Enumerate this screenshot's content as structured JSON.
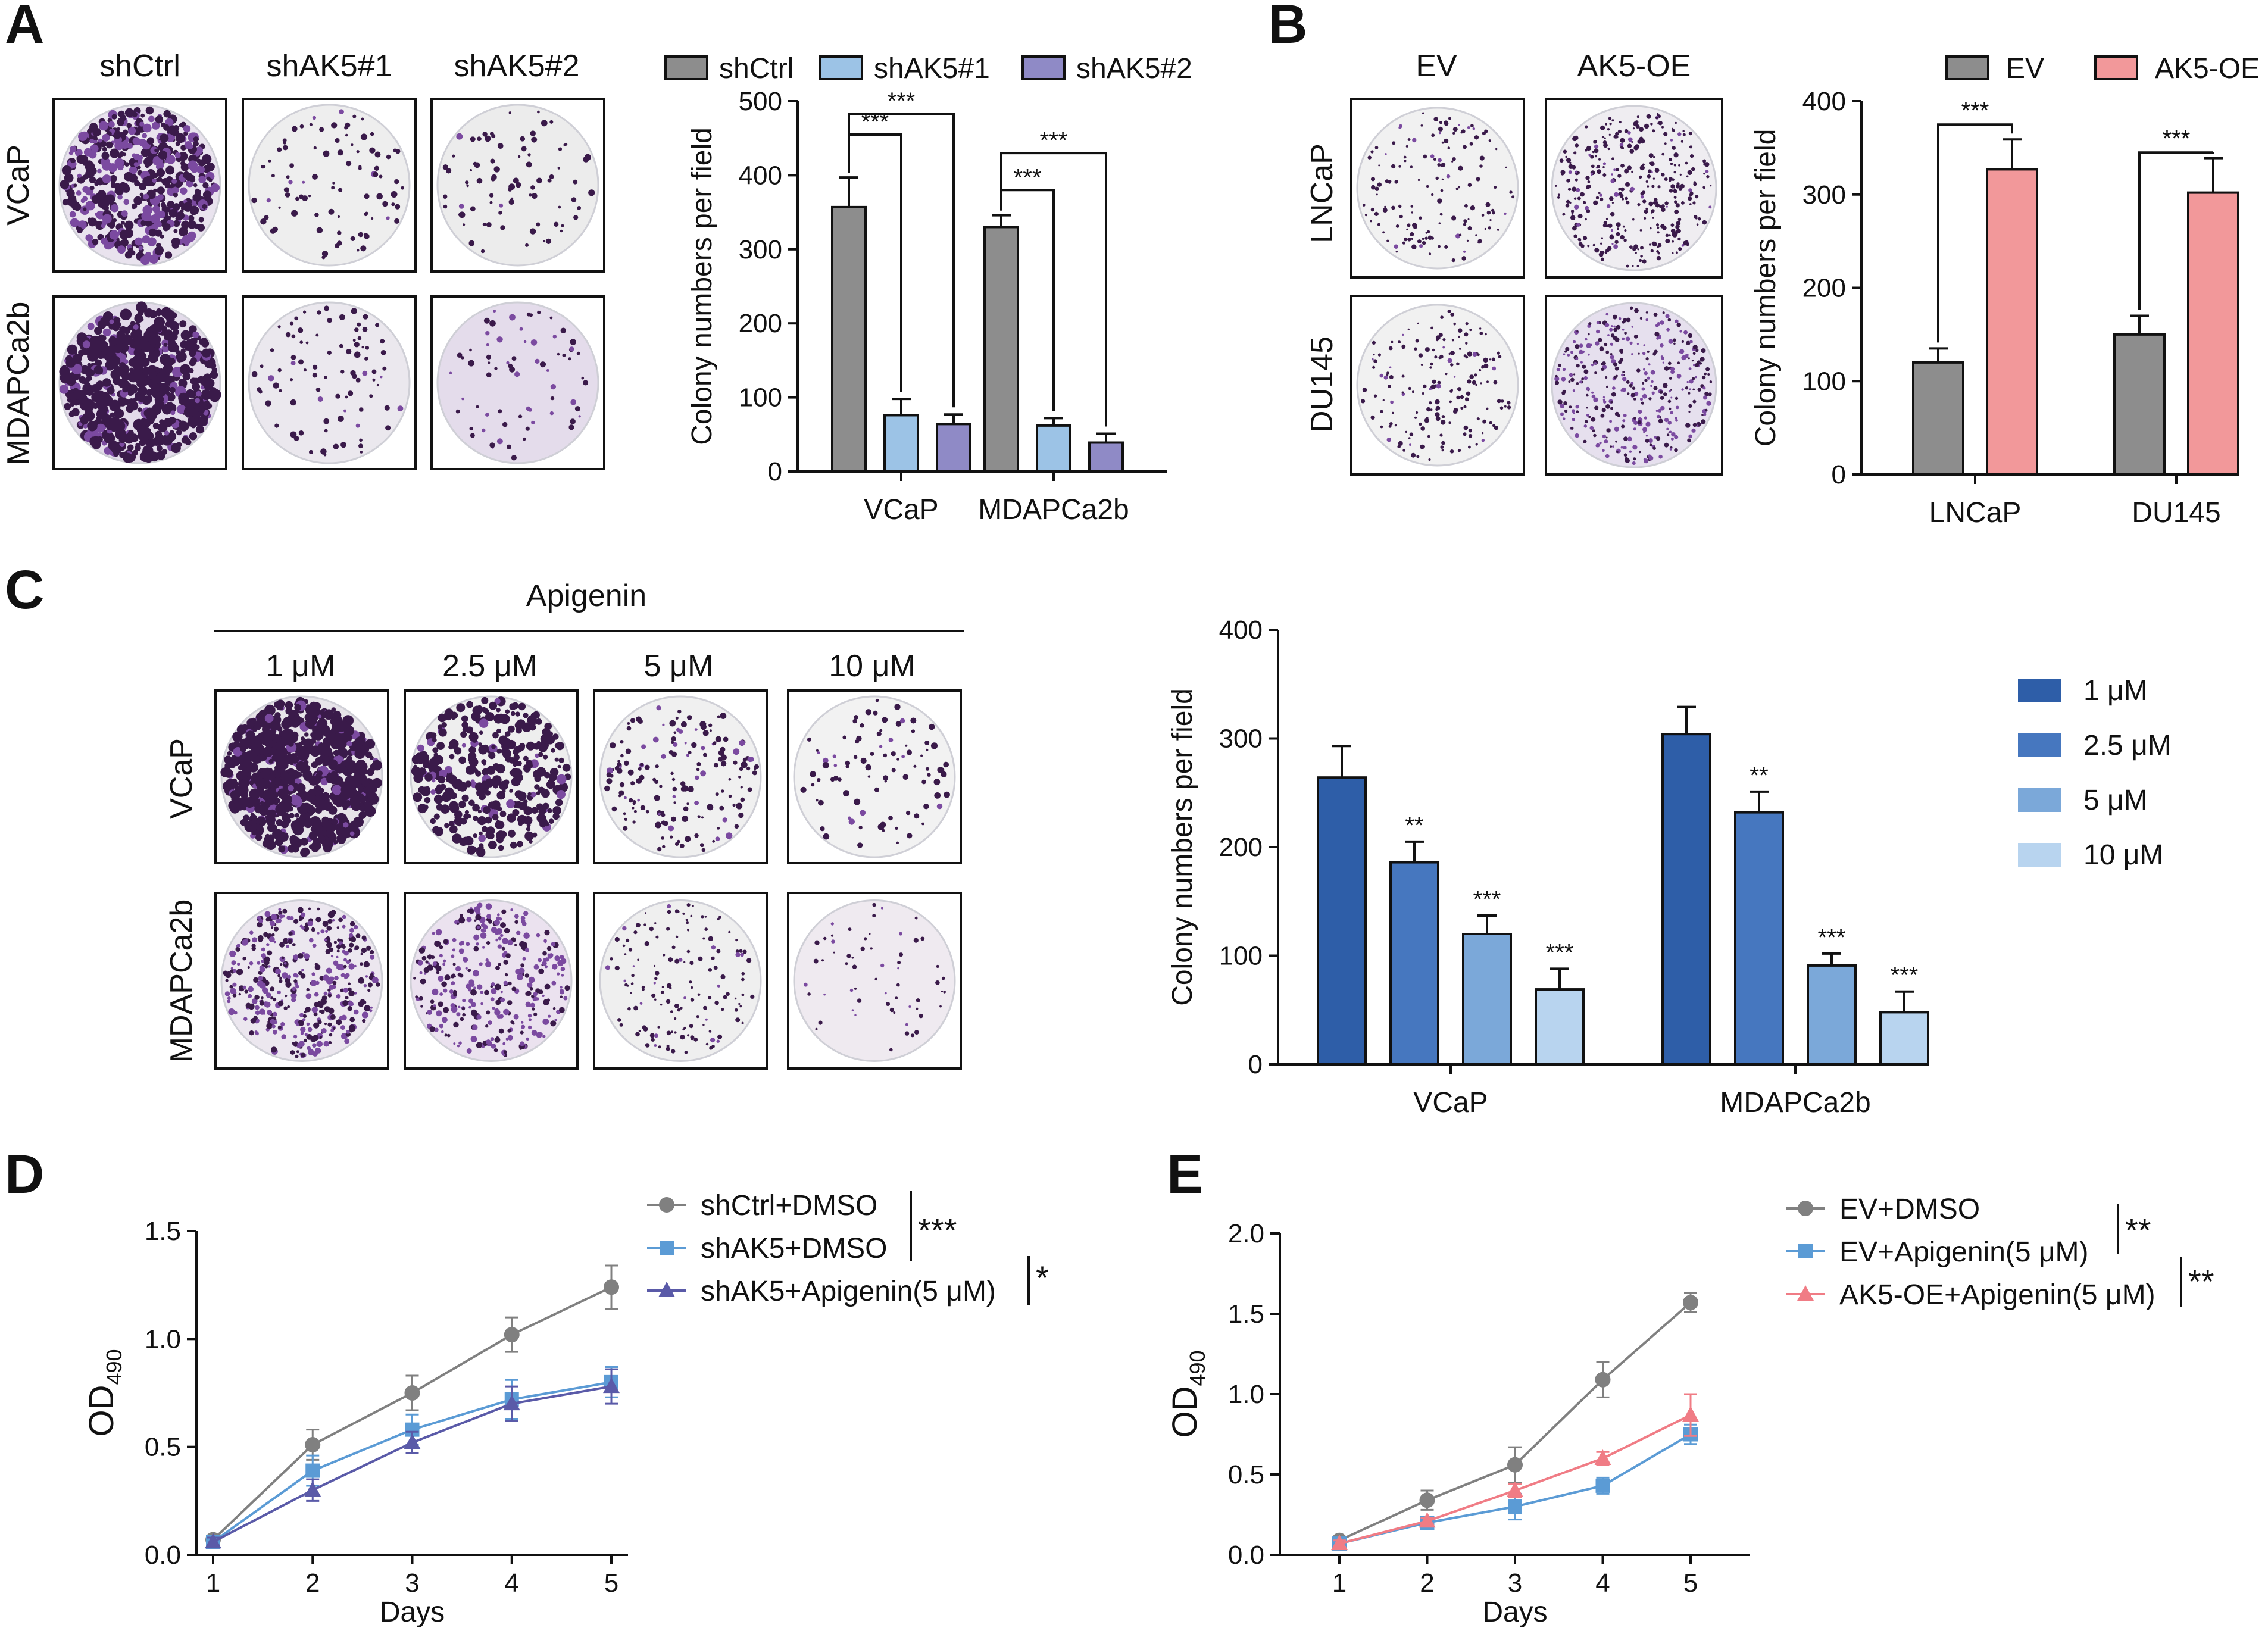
{
  "colors": {
    "gray": "#8d8d8d",
    "light_blue": "#9cc3e6",
    "purple": "#8f8ac6",
    "pink": "#f2989a",
    "blue1": "#2e5ea8",
    "blue2": "#4677bf",
    "blue3": "#7ba8d9",
    "blue4": "#b8d4ef",
    "line_gray": "#808080",
    "line_blue": "#5b9bd5",
    "line_purple": "#5a5aa8",
    "line_pink": "#f07c85",
    "stain": "#3a1a4a"
  },
  "panels": {
    "A": {
      "label": "A",
      "columns": [
        "shCtrl",
        "shAK5#1",
        "shAK5#2"
      ],
      "rows": [
        "VCaP",
        "MDAPCa2b"
      ]
    },
    "B": {
      "label": "B",
      "columns": [
        "EV",
        "AK5-OE"
      ],
      "rows": [
        "LNCaP",
        "DU145"
      ]
    },
    "C": {
      "label": "C",
      "treatment": "Apigenin",
      "columns": [
        "1 μM",
        "2.5 μM",
        "5 μM",
        "10 μM"
      ],
      "rows": [
        "VCaP",
        "MDAPCa2b"
      ]
    },
    "D": {
      "label": "D"
    },
    "E": {
      "label": "E"
    }
  },
  "chart_data": [
    {
      "id": "A",
      "type": "bar",
      "categories": [
        "VCaP",
        "MDAPCa2b"
      ],
      "series": [
        {
          "name": "shCtrl",
          "color": "#8d8d8d",
          "values": [
            357,
            330
          ],
          "errors": [
            40,
            16
          ]
        },
        {
          "name": "shAK5#1",
          "color": "#9cc3e6",
          "values": [
            76,
            62
          ],
          "errors": [
            22,
            10
          ]
        },
        {
          "name": "shAK5#2",
          "color": "#8f8ac6",
          "values": [
            64,
            39
          ],
          "errors": [
            13,
            12
          ]
        }
      ],
      "ylabel": "Colony numbers per field",
      "ylim": [
        0,
        500
      ],
      "yticks": [
        "0",
        "100",
        "200",
        "300",
        "400",
        "500"
      ],
      "significance": [
        {
          "group": "VCaP",
          "from": "shCtrl",
          "to": "shAK5#1",
          "label": "***"
        },
        {
          "group": "VCaP",
          "from": "shCtrl",
          "to": "shAK5#2",
          "label": "***"
        },
        {
          "group": "MDAPCa2b",
          "from": "shCtrl",
          "to": "shAK5#1",
          "label": "***"
        },
        {
          "group": "MDAPCa2b",
          "from": "shCtrl",
          "to": "shAK5#2",
          "label": "***"
        }
      ]
    },
    {
      "id": "B",
      "type": "bar",
      "categories": [
        "LNCaP",
        "DU145"
      ],
      "series": [
        {
          "name": "EV",
          "color": "#8d8d8d",
          "values": [
            120,
            150
          ],
          "errors": [
            15,
            20
          ]
        },
        {
          "name": "AK5-OE",
          "color": "#f2989a",
          "values": [
            327,
            302
          ],
          "errors": [
            32,
            37
          ]
        }
      ],
      "ylabel": "Colony numbers per field",
      "ylim": [
        0,
        400
      ],
      "yticks": [
        "0",
        "100",
        "200",
        "300",
        "400"
      ],
      "significance": [
        {
          "group": "LNCaP",
          "label": "***"
        },
        {
          "group": "DU145",
          "label": "***"
        }
      ]
    },
    {
      "id": "C",
      "type": "bar",
      "categories": [
        "VCaP",
        "MDAPCa2b"
      ],
      "series": [
        {
          "name": "1 μM",
          "color": "#2e5ea8",
          "values": [
            264,
            304
          ],
          "errors": [
            29,
            25
          ],
          "stars": [
            "",
            ""
          ]
        },
        {
          "name": "2.5 μM",
          "color": "#4677bf",
          "values": [
            186,
            232
          ],
          "errors": [
            19,
            19
          ],
          "stars": [
            "**",
            "**"
          ]
        },
        {
          "name": "5 μM",
          "color": "#7ba8d9",
          "values": [
            120,
            91
          ],
          "errors": [
            17,
            11
          ],
          "stars": [
            "***",
            "***"
          ]
        },
        {
          "name": "10 μM",
          "color": "#b8d4ef",
          "values": [
            69,
            48
          ],
          "errors": [
            19,
            19
          ],
          "stars": [
            "***",
            "***"
          ]
        }
      ],
      "ylabel": "Colony numbers per field",
      "ylim": [
        0,
        400
      ],
      "yticks": [
        "0",
        "100",
        "200",
        "300",
        "400"
      ]
    },
    {
      "id": "D",
      "type": "line",
      "x": [
        1,
        2,
        3,
        4,
        5
      ],
      "xticks": [
        "1",
        "2",
        "3",
        "4",
        "5"
      ],
      "series": [
        {
          "name": "shCtrl+DMSO",
          "color": "#808080",
          "marker": "circle",
          "values": [
            0.07,
            0.51,
            0.75,
            1.02,
            1.24
          ],
          "errors": [
            0.02,
            0.07,
            0.08,
            0.08,
            0.1
          ]
        },
        {
          "name": "shAK5+DMSO",
          "color": "#5b9bd5",
          "marker": "square",
          "values": [
            0.06,
            0.39,
            0.58,
            0.72,
            0.8
          ],
          "errors": [
            0.02,
            0.07,
            0.07,
            0.09,
            0.07
          ]
        },
        {
          "name": "shAK5+Apigenin(5 μM)",
          "color": "#5a5aa8",
          "marker": "triangle",
          "values": [
            0.06,
            0.3,
            0.52,
            0.7,
            0.78
          ],
          "errors": [
            0.02,
            0.05,
            0.05,
            0.08,
            0.08
          ]
        }
      ],
      "xlabel": "Days",
      "ylabel": "OD",
      "ylabel_sub": "490",
      "ylim": [
        0,
        1.5
      ],
      "yticks": [
        "0.0",
        "0.5",
        "1.0",
        "1.5"
      ],
      "significance": [
        {
          "between": [
            "shCtrl+DMSO",
            "shAK5+DMSO"
          ],
          "label": "***"
        },
        {
          "between": [
            "shAK5+DMSO",
            "shAK5+Apigenin(5 μM)"
          ],
          "label": "*"
        }
      ]
    },
    {
      "id": "E",
      "type": "line",
      "x": [
        1,
        2,
        3,
        4,
        5
      ],
      "xticks": [
        "1",
        "2",
        "3",
        "4",
        "5"
      ],
      "series": [
        {
          "name": "EV+DMSO",
          "color": "#808080",
          "marker": "circle",
          "values": [
            0.09,
            0.34,
            0.56,
            1.09,
            1.57
          ],
          "errors": [
            0.02,
            0.06,
            0.11,
            0.11,
            0.06
          ]
        },
        {
          "name": "EV+Apigenin(5 μM)",
          "color": "#5b9bd5",
          "marker": "square",
          "values": [
            0.07,
            0.2,
            0.3,
            0.43,
            0.75
          ],
          "errors": [
            0.02,
            0.03,
            0.08,
            0.05,
            0.06
          ]
        },
        {
          "name": "AK5-OE+Apigenin(5 μM)",
          "color": "#f07c85",
          "marker": "triangle",
          "values": [
            0.07,
            0.21,
            0.4,
            0.6,
            0.87
          ],
          "errors": [
            0.02,
            0.02,
            0.04,
            0.04,
            0.13
          ]
        }
      ],
      "xlabel": "Days",
      "ylabel": "OD",
      "ylabel_sub": "490",
      "ylim": [
        0,
        2.0
      ],
      "yticks": [
        "0.0",
        "0.5",
        "1.0",
        "1.5",
        "2.0"
      ],
      "significance": [
        {
          "between": [
            "EV+DMSO",
            "EV+Apigenin(5 μM)"
          ],
          "label": "**"
        },
        {
          "between": [
            "EV+Apigenin(5 μM)",
            "AK5-OE+Apigenin(5 μM)"
          ],
          "label": "**"
        }
      ]
    }
  ]
}
